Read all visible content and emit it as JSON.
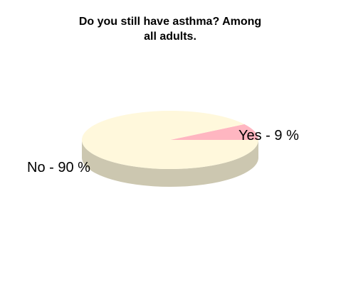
{
  "chart_data": {
    "type": "pie",
    "title_lines": [
      "Do you still have asthma? Among",
      "all adults."
    ],
    "slices": [
      {
        "label": "Yes - 9 %",
        "value": 9,
        "color": "#ffb6c1",
        "side_color": "#c89aa0"
      },
      {
        "label": "No - 90 %",
        "value": 90,
        "color": "#fff8dc",
        "side_color": "#ccc7b0"
      }
    ],
    "style": "3d",
    "legend": "none"
  }
}
